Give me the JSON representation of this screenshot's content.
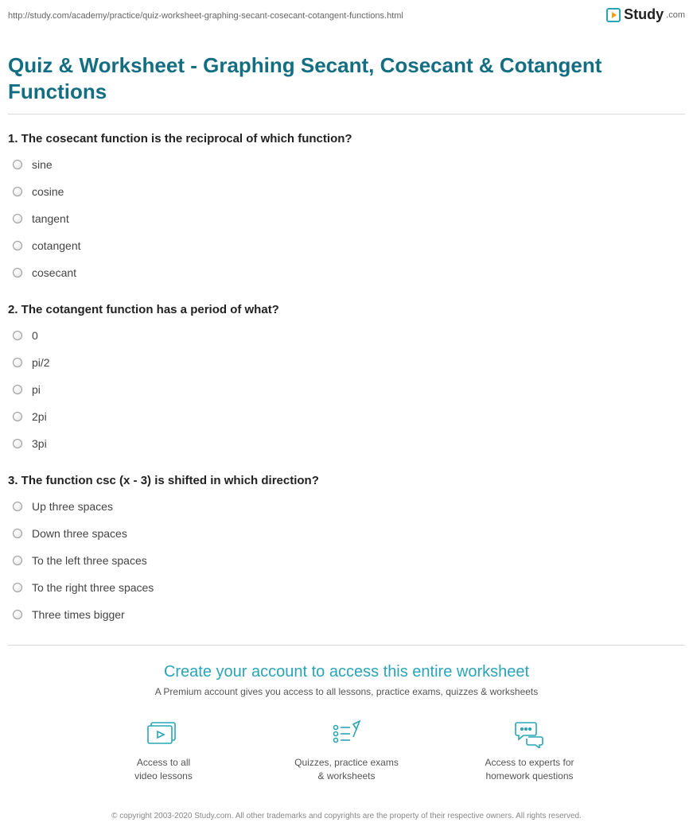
{
  "url": "http://study.com/academy/practice/quiz-worksheet-graphing-secant-cosecant-cotangent-functions.html",
  "brand": {
    "name": "Study",
    "suffix": ".com"
  },
  "title": "Quiz & Worksheet - Graphing Secant, Cosecant & Cotangent Functions",
  "questions": [
    {
      "number": "1.",
      "text": "The cosecant function is the reciprocal of which function?",
      "options": [
        "sine",
        "cosine",
        "tangent",
        "cotangent",
        "cosecant"
      ]
    },
    {
      "number": "2.",
      "text": "The cotangent function has a period of what?",
      "options": [
        "0",
        "pi/2",
        "pi",
        "2pi",
        "3pi"
      ]
    },
    {
      "number": "3.",
      "text": "The function csc (x - 3) is shifted in which direction?",
      "options": [
        "Up three spaces",
        "Down three spaces",
        "To the left three spaces",
        "To the right three spaces",
        "Three times bigger"
      ]
    }
  ],
  "cta": {
    "title": "Create your account to access this entire worksheet",
    "subtitle": "A Premium account gives you access to all lessons, practice exams, quizzes & worksheets",
    "benefits": [
      {
        "line1": "Access to all",
        "line2": "video lessons"
      },
      {
        "line1": "Quizzes, practice exams",
        "line2": "& worksheets"
      },
      {
        "line1": "Access to experts for",
        "line2": "homework questions"
      }
    ]
  },
  "copyright": "© copyright 2003-2020 Study.com. All other trademarks and copyrights are the property of their respective owners. All rights reserved."
}
